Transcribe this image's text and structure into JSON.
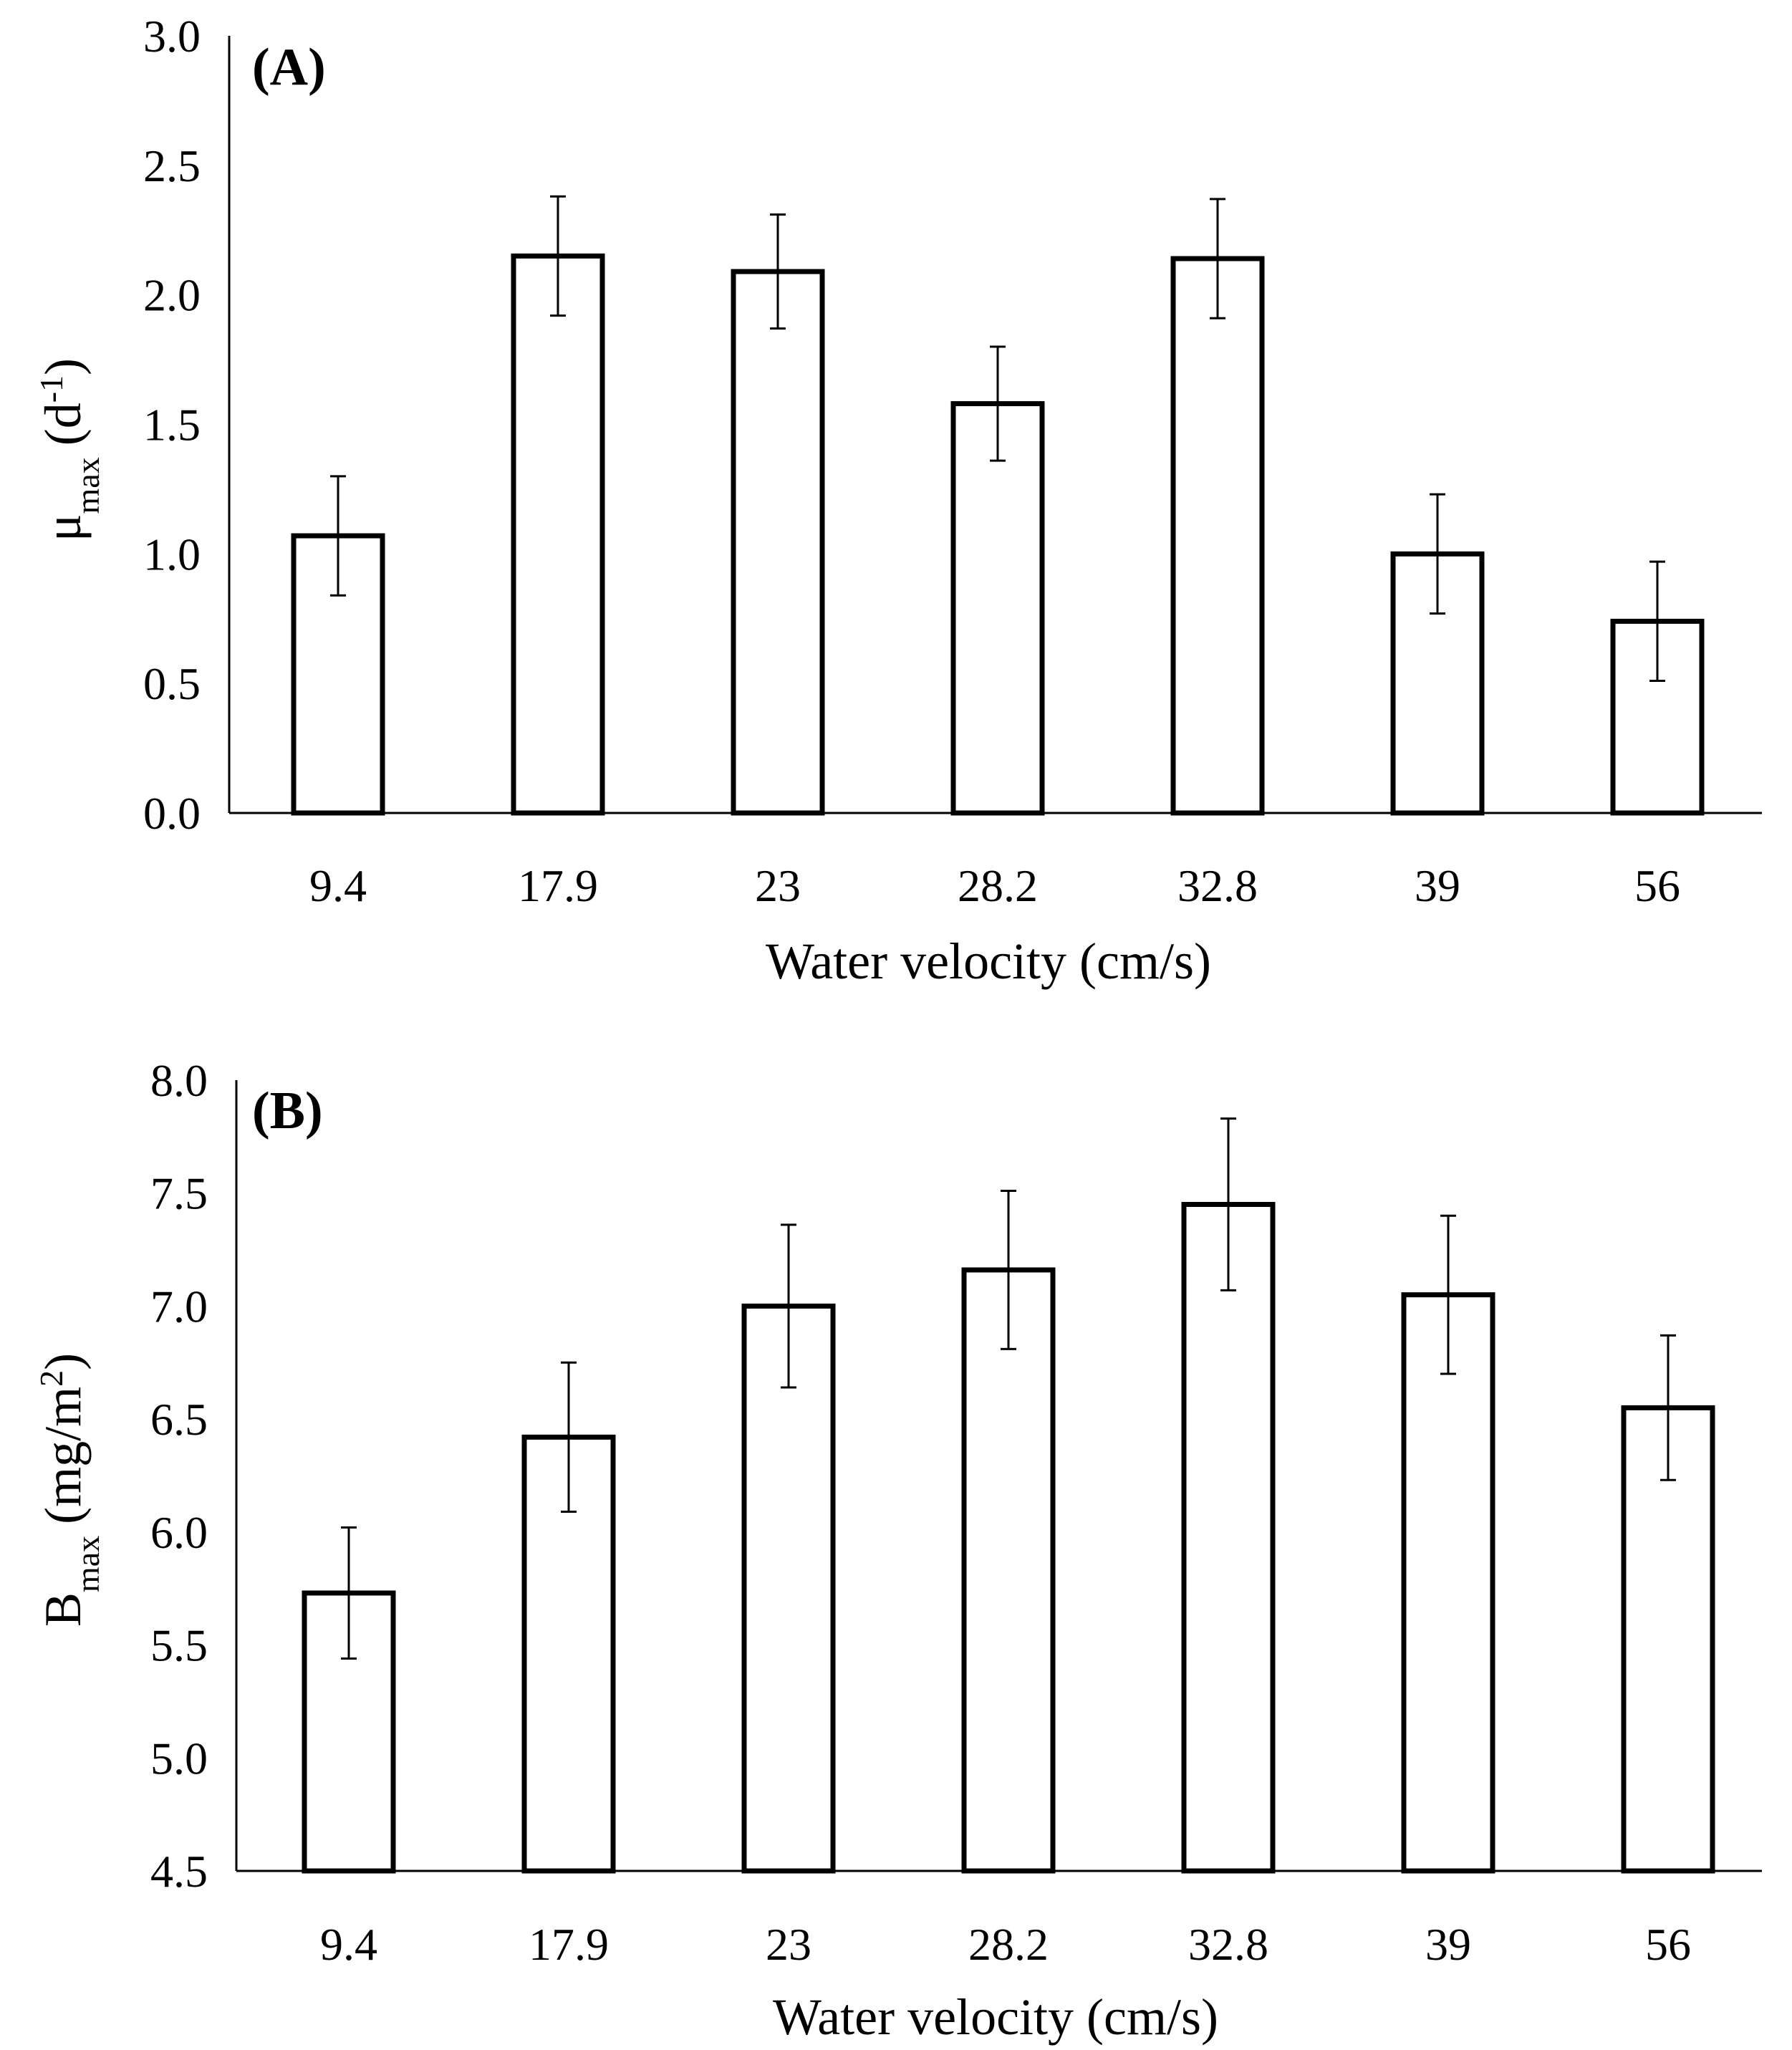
{
  "chart_data": [
    {
      "type": "bar",
      "panel_label": "(A)",
      "categories": [
        "9.4",
        "17.9",
        "23",
        "28.2",
        "32.8",
        "39",
        "56"
      ],
      "values": [
        1.07,
        2.15,
        2.09,
        1.58,
        2.14,
        1.0,
        0.74
      ],
      "errors": [
        0.23,
        0.23,
        0.22,
        0.22,
        0.23,
        0.23,
        0.23
      ],
      "xlabel": "Water velocity (cm/s)",
      "ylabel": {
        "main": "μ",
        "sub": "max",
        "unit_open": "(d",
        "sup": "-1",
        "unit_close": ")"
      },
      "ylim": [
        0.0,
        3.0
      ],
      "yticks": [
        "0.0",
        "0.5",
        "1.0",
        "1.5",
        "2.0",
        "2.5",
        "3.0"
      ],
      "grid": false
    },
    {
      "type": "bar",
      "panel_label": "(B)",
      "categories": [
        "9.4",
        "17.9",
        "23",
        "28.2",
        "32.8",
        "39",
        "56"
      ],
      "values": [
        5.73,
        6.42,
        7.0,
        7.16,
        7.45,
        7.05,
        6.55
      ],
      "errors": [
        0.29,
        0.33,
        0.36,
        0.35,
        0.38,
        0.35,
        0.32
      ],
      "xlabel": "Water velocity (cm/s)",
      "ylabel": {
        "main": "B",
        "sub": "max",
        "unit_open": "(mg/m",
        "sup": "2",
        "unit_close": ")"
      },
      "ylim": [
        4.5,
        8.0
      ],
      "yticks": [
        "4.5",
        "5.0",
        "5.5",
        "6.0",
        "6.5",
        "7.0",
        "7.5",
        "8.0"
      ],
      "grid": false
    }
  ]
}
